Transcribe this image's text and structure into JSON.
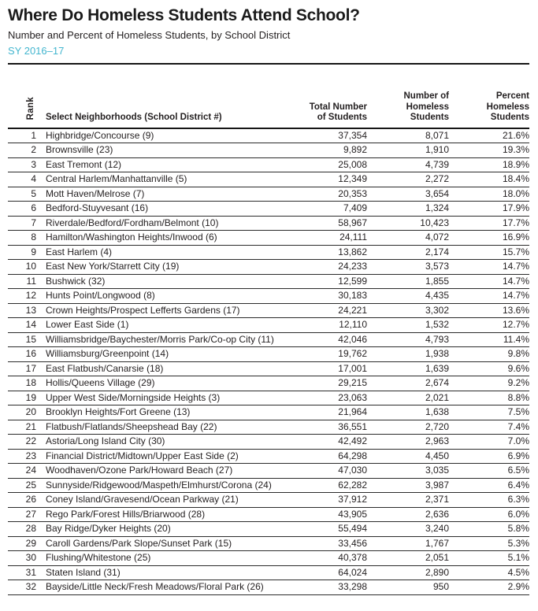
{
  "page": {
    "title": "Where Do Homeless Students Attend School?",
    "subtitle": "Number and Percent of Homeless Students, by School District",
    "school_year": "SY 2016–17"
  },
  "colors": {
    "accent_teal": "#44b6cf",
    "text": "#231f20",
    "rule": "#161616"
  },
  "table": {
    "rank_header": "Rank",
    "neighborhood_header": "Select Neighborhoods (School District #)",
    "total_header": "Total Number\nof Students",
    "homeless_header": "Number of\nHomeless\nStudents",
    "percent_header": "Percent\nHomeless\nStudents"
  },
  "chart_data": {
    "type": "table",
    "title": "Where Do Homeless Students Attend School?",
    "subtitle": "Number and Percent of Homeless Students, by School District",
    "school_year": "SY 2016–17",
    "columns": [
      "Rank",
      "Select Neighborhoods (School District #)",
      "Total Number of Students",
      "Number of Homeless Students",
      "Percent Homeless Students"
    ],
    "rows": [
      [
        "1",
        "Highbridge/Concourse (9)",
        "37,354",
        "8,071",
        "21.6%"
      ],
      [
        "2",
        "Brownsville (23)",
        "9,892",
        "1,910",
        "19.3%"
      ],
      [
        "3",
        "East Tremont (12)",
        "25,008",
        "4,739",
        "18.9%"
      ],
      [
        "4",
        "Central Harlem/Manhattanville (5)",
        "12,349",
        "2,272",
        "18.4%"
      ],
      [
        "5",
        "Mott Haven/Melrose (7)",
        "20,353",
        "3,654",
        "18.0%"
      ],
      [
        "6",
        "Bedford-Stuyvesant (16)",
        "7,409",
        "1,324",
        "17.9%"
      ],
      [
        "7",
        "Riverdale/Bedford/Fordham/Belmont (10)",
        "58,967",
        "10,423",
        "17.7%"
      ],
      [
        "8",
        "Hamilton/Washington Heights/Inwood (6)",
        "24,111",
        "4,072",
        "16.9%"
      ],
      [
        "9",
        "East Harlem (4)",
        "13,862",
        "2,174",
        "15.7%"
      ],
      [
        "10",
        "East New York/Starrett City (19)",
        "24,233",
        "3,573",
        "14.7%"
      ],
      [
        "11",
        "Bushwick (32)",
        "12,599",
        "1,855",
        "14.7%"
      ],
      [
        "12",
        "Hunts Point/Longwood (8)",
        "30,183",
        "4,435",
        "14.7%"
      ],
      [
        "13",
        "Crown Heights/Prospect Lefferts Gardens (17)",
        "24,221",
        "3,302",
        "13.6%"
      ],
      [
        "14",
        "Lower East Side (1)",
        "12,110",
        "1,532",
        "12.7%"
      ],
      [
        "15",
        "Williamsbridge/Baychester/Morris Park/Co-op City (11)",
        "42,046",
        "4,793",
        "11.4%"
      ],
      [
        "16",
        "Williamsburg/Greenpoint (14)",
        "19,762",
        "1,938",
        "9.8%"
      ],
      [
        "17",
        "East Flatbush/Canarsie (18)",
        "17,001",
        "1,639",
        "9.6%"
      ],
      [
        "18",
        "Hollis/Queens Village (29)",
        "29,215",
        "2,674",
        "9.2%"
      ],
      [
        "19",
        "Upper West Side/Morningside Heights (3)",
        "23,063",
        "2,021",
        "8.8%"
      ],
      [
        "20",
        "Brooklyn Heights/Fort Greene (13)",
        "21,964",
        "1,638",
        "7.5%"
      ],
      [
        "21",
        "Flatbush/Flatlands/Sheepshead Bay (22)",
        "36,551",
        "2,720",
        "7.4%"
      ],
      [
        "22",
        "Astoria/Long Island City (30)",
        "42,492",
        "2,963",
        "7.0%"
      ],
      [
        "23",
        "Financial District/Midtown/Upper East Side (2)",
        "64,298",
        "4,450",
        "6.9%"
      ],
      [
        "24",
        "Woodhaven/Ozone Park/Howard Beach (27)",
        "47,030",
        "3,035",
        "6.5%"
      ],
      [
        "25",
        "Sunnyside/Ridgewood/Maspeth/Elmhurst/Corona (24)",
        "62,282",
        "3,987",
        "6.4%"
      ],
      [
        "26",
        "Coney Island/Gravesend/Ocean Parkway (21)",
        "37,912",
        "2,371",
        "6.3%"
      ],
      [
        "27",
        "Rego Park/Forest Hills/Briarwood (28)",
        "43,905",
        "2,636",
        "6.0%"
      ],
      [
        "28",
        "Bay Ridge/Dyker Heights (20)",
        "55,494",
        "3,240",
        "5.8%"
      ],
      [
        "29",
        "Caroll Gardens/Park Slope/Sunset Park (15)",
        "33,456",
        "1,767",
        "5.3%"
      ],
      [
        "30",
        "Flushing/Whitestone (25)",
        "40,378",
        "2,051",
        "5.1%"
      ],
      [
        "31",
        "Staten Island (31)",
        "64,024",
        "2,890",
        "4.5%"
      ],
      [
        "32",
        "Bayside/Little Neck/Fresh Meadows/Floral Park (26)",
        "33,298",
        "950",
        "2.9%"
      ]
    ]
  }
}
